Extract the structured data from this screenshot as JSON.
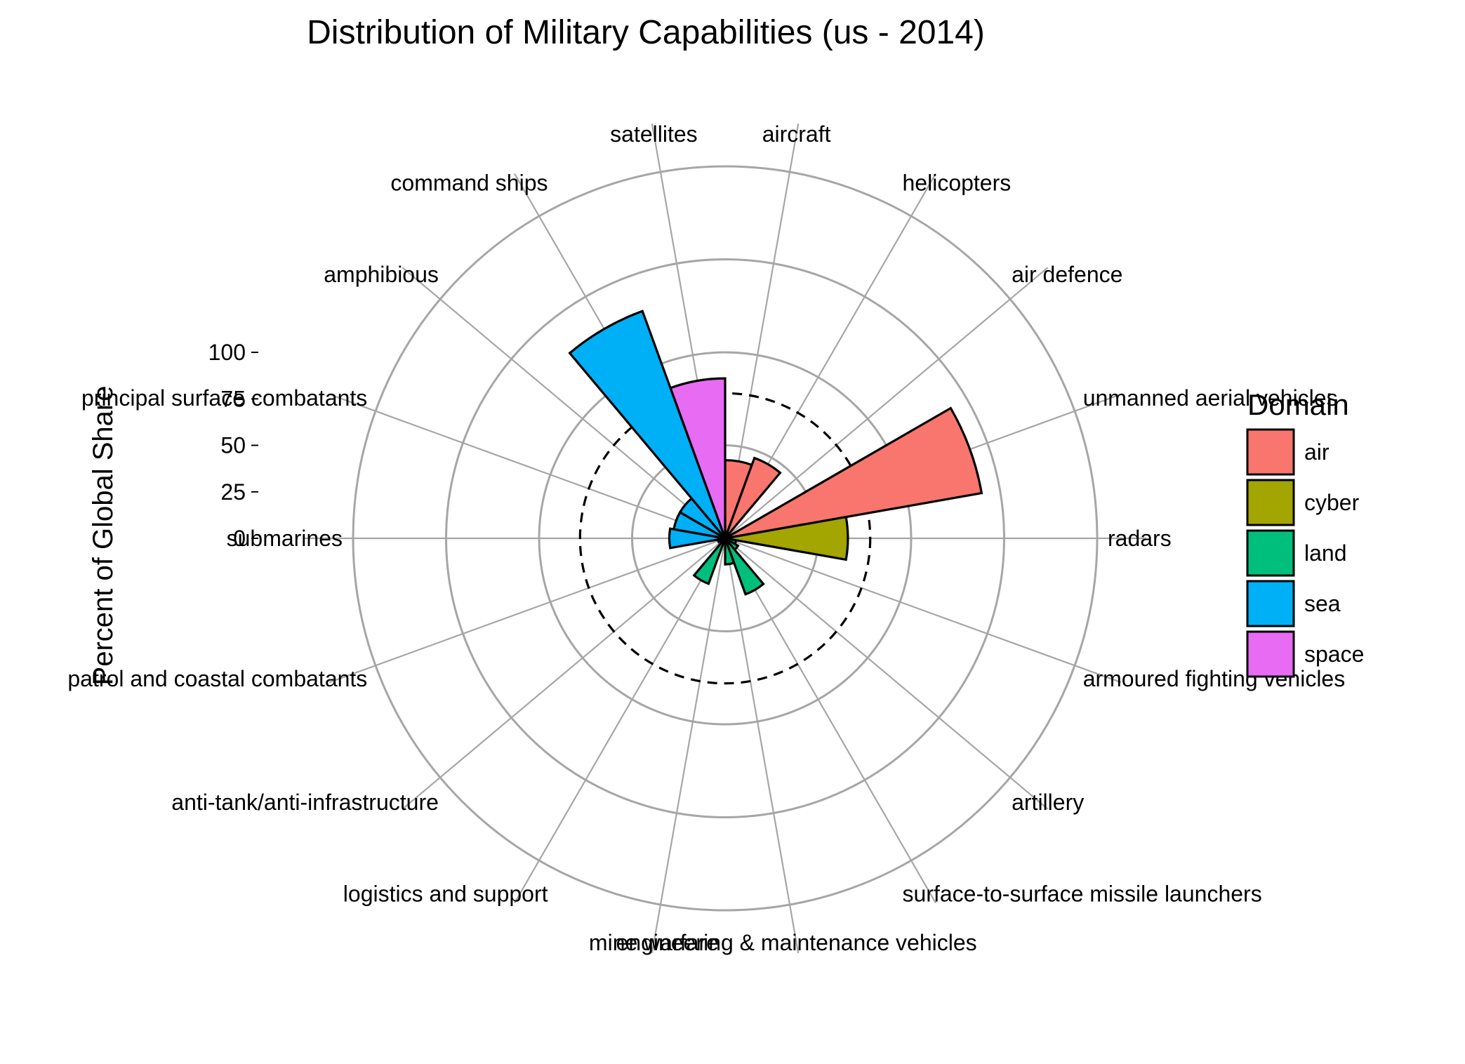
{
  "chart_data": {
    "type": "bar",
    "coord": "polar",
    "title": "Distribution of Military Capabilities (us - 2014)",
    "ylabel": "Percent of Global Share",
    "xlabel": "",
    "ylim": [
      0,
      100
    ],
    "yticks": [
      0,
      25,
      50,
      75,
      100
    ],
    "ytick_labels": [
      "0",
      "25",
      "50",
      "75",
      "100"
    ],
    "reference_line": {
      "value": 39,
      "style": "dashed"
    },
    "categories": [
      "aircraft",
      "helicopters",
      "air defence",
      "unmanned aerial vehicles",
      "radars",
      "armoured fighting vehicles",
      "artillery",
      "surface-to-surface missile launchers",
      "engineering & maintenance vehicles",
      "mine warfare",
      "logistics and support",
      "anti-tank/anti-infrastructure",
      "patrol and coastal combatants",
      "submarines",
      "principal surface combatants",
      "amphibious",
      "command ships",
      "satellites"
    ],
    "values": [
      21,
      23,
      0,
      70,
      33,
      3,
      4,
      16,
      7,
      1,
      13,
      1,
      2,
      15,
      14,
      14,
      65,
      43
    ],
    "domains": [
      "air",
      "air",
      "air",
      "air",
      "cyber",
      "land",
      "land",
      "land",
      "land",
      "land",
      "land",
      "land",
      "sea",
      "sea",
      "sea",
      "sea",
      "sea",
      "space"
    ],
    "legend": {
      "title": "Domain",
      "position": "right",
      "items": [
        {
          "label": "air",
          "color": "#F8766D"
        },
        {
          "label": "cyber",
          "color": "#A3A500"
        },
        {
          "label": "land",
          "color": "#00BF7D"
        },
        {
          "label": "sea",
          "color": "#00B0F6"
        },
        {
          "label": "space",
          "color": "#E76BF3"
        }
      ]
    },
    "grid": true
  }
}
